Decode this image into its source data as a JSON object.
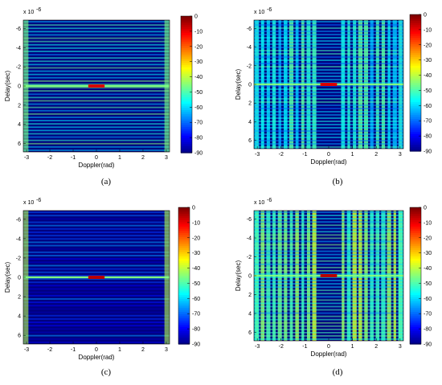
{
  "chart_data": [
    {
      "type": "heatmap",
      "caption": "(a)",
      "xlabel": "Doppler(rad)",
      "ylabel": "Delay(sec)",
      "exponent_label": "x 10",
      "exponent_power": "-6",
      "xlim": [
        -3.14,
        3.14
      ],
      "ylim": [
        -6.9,
        6.9
      ],
      "xticks": [
        "-3",
        "-2",
        "-1",
        "0",
        "1",
        "2",
        "3"
      ],
      "yticks": [
        "-6",
        "-4",
        "-2",
        "0",
        "2",
        "4",
        "6"
      ],
      "colorbar_ticks": [
        "0",
        "-10",
        "-20",
        "-30",
        "-40",
        "-50",
        "-60",
        "-70",
        "-80",
        "-90"
      ],
      "clim": [
        -90,
        0
      ],
      "pattern": {
        "row_bands": true,
        "col_bands": false,
        "row_level": -55,
        "col_level": -75,
        "edge_level": -45,
        "center_level": -8
      }
    },
    {
      "type": "heatmap",
      "caption": "(b)",
      "xlabel": "Doppler(rad)",
      "ylabel": "Delay(sec)",
      "exponent_label": "x 10",
      "exponent_power": "-6",
      "xlim": [
        -3.14,
        3.14
      ],
      "ylim": [
        -6.9,
        6.9
      ],
      "xticks": [
        "-3",
        "-2",
        "-1",
        "0",
        "1",
        "2",
        "3"
      ],
      "yticks": [
        "-6",
        "-4",
        "-2",
        "0",
        "2",
        "4",
        "6"
      ],
      "colorbar_ticks": [
        "0",
        "-10",
        "-20",
        "-30",
        "-40",
        "-50",
        "-60",
        "-70",
        "-80",
        "-90"
      ],
      "clim": [
        -90,
        0
      ],
      "pattern": {
        "row_bands": true,
        "col_bands": true,
        "row_level": -60,
        "col_level": -55,
        "edge_level": -60,
        "center_level": -8
      }
    },
    {
      "type": "heatmap",
      "caption": "(c)",
      "xlabel": "Doppler(rad)",
      "ylabel": "Delay(sec)",
      "exponent_label": "x 10",
      "exponent_power": "-6",
      "xlim": [
        -3.14,
        3.14
      ],
      "ylim": [
        -6.9,
        6.9
      ],
      "xticks": [
        "-3",
        "-2",
        "-1",
        "0",
        "1",
        "2",
        "3"
      ],
      "yticks": [
        "-6",
        "-4",
        "-2",
        "0",
        "2",
        "4",
        "6"
      ],
      "colorbar_ticks": [
        "0",
        "-10",
        "-20",
        "-30",
        "-40",
        "-50",
        "-60",
        "-70",
        "-80",
        "-90"
      ],
      "clim": [
        -90,
        0
      ],
      "pattern": {
        "row_bands": true,
        "col_bands": false,
        "row_level": -75,
        "col_level": -80,
        "edge_level": -40,
        "center_level": -5
      }
    },
    {
      "type": "heatmap",
      "caption": "(d)",
      "xlabel": "Doppler(rad)",
      "ylabel": "Delay(sec)",
      "exponent_label": "x 10",
      "exponent_power": "-6",
      "xlim": [
        -3.14,
        3.14
      ],
      "ylim": [
        -6.9,
        6.9
      ],
      "xticks": [
        "-3",
        "-2",
        "-1",
        "0",
        "1",
        "2",
        "3"
      ],
      "yticks": [
        "-6",
        "-4",
        "-2",
        "0",
        "2",
        "4",
        "6"
      ],
      "colorbar_ticks": [
        "0",
        "-10",
        "-20",
        "-30",
        "-40",
        "-50",
        "-60",
        "-70",
        "-80",
        "-90"
      ],
      "clim": [
        -90,
        0
      ],
      "pattern": {
        "row_bands": true,
        "col_bands": true,
        "row_level": -55,
        "col_level": -45,
        "edge_level": -55,
        "center_level": -5
      }
    }
  ]
}
